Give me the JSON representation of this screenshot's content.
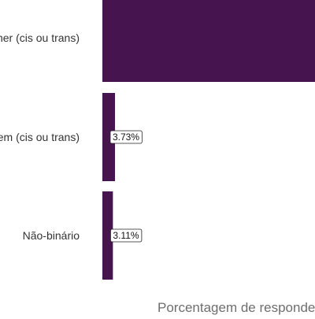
{
  "chart_data": {
    "type": "bar",
    "orientation": "horizontal",
    "xlabel": "Porcentagem de respondentes",
    "categories": [
      "Mulher (cis ou trans)",
      "Homem (cis ou trans)",
      "Não-binário"
    ],
    "values": [
      93.16,
      3.73,
      3.11
    ],
    "data_labels": [
      "",
      "3.73%",
      "3.11%"
    ],
    "bar_color": "#46154f",
    "grid": false
  }
}
